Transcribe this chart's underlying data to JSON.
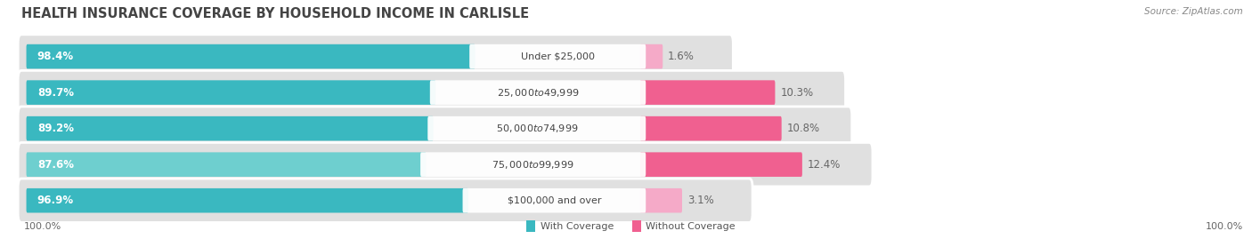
{
  "title": "HEALTH INSURANCE COVERAGE BY HOUSEHOLD INCOME IN CARLISLE",
  "source": "Source: ZipAtlas.com",
  "categories": [
    "Under $25,000",
    "$25,000 to $49,999",
    "$50,000 to $74,999",
    "$75,000 to $99,999",
    "$100,000 and over"
  ],
  "with_coverage": [
    98.4,
    89.7,
    89.2,
    87.6,
    96.9
  ],
  "without_coverage": [
    1.6,
    10.3,
    10.8,
    12.4,
    3.1
  ],
  "with_colors": [
    "#3ab8c0",
    "#3ab8c0",
    "#3ab8c0",
    "#6ecfcf",
    "#3ab8c0"
  ],
  "without_colors": [
    "#f5aac8",
    "#f06090",
    "#f06090",
    "#f06090",
    "#f5aac8"
  ],
  "row_bg_color": "#e0e0e0",
  "label_bg_color": "#f5f5f5",
  "legend_with": "With Coverage",
  "legend_without": "Without Coverage",
  "legend_with_color": "#3ab8c0",
  "legend_without_color": "#f06090",
  "fig_width": 14.06,
  "fig_height": 2.69,
  "dpi": 100,
  "left_pct_color": "#ffffff",
  "right_pct_color": "#666666",
  "category_label_color": "#444444",
  "title_color": "#444444",
  "source_color": "#888888",
  "bottom_label_color": "#666666"
}
